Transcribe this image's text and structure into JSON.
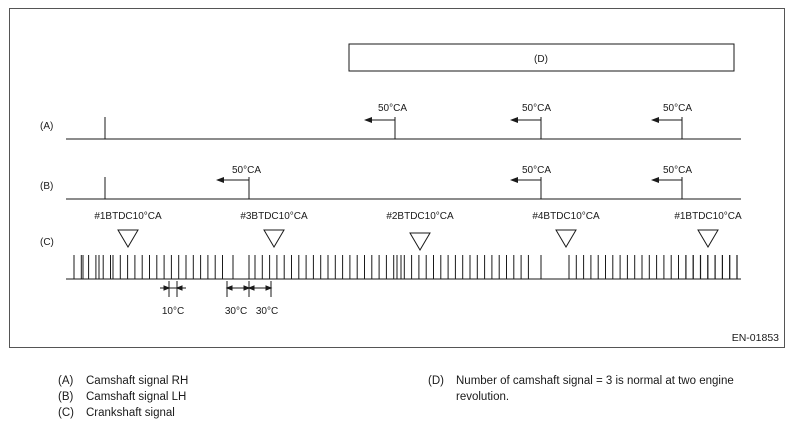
{
  "figure": {
    "code": "EN-01853",
    "box_d_label": "(D)",
    "rows": {
      "a": {
        "label": "(A)",
        "pulse_labels": [
          "50°CA",
          "50°CA",
          "50°CA"
        ]
      },
      "b": {
        "label": "(B)",
        "pulse_labels": [
          "50°CA",
          "50°CA",
          "50°CA"
        ]
      },
      "c": {
        "label": "(C)",
        "tdc_labels": [
          "#1BTDC10°CA",
          "#3BTDC10°CA",
          "#2BTDC10°CA",
          "#4BTDC10°CA",
          "#1BTDC10°CA"
        ]
      }
    },
    "dimensions": [
      "10°C",
      "30°C",
      "30°C"
    ]
  },
  "legend": {
    "left": [
      {
        "key": "(A)",
        "text": "Camshaft signal RH"
      },
      {
        "key": "(B)",
        "text": "Camshaft signal LH"
      },
      {
        "key": "(C)",
        "text": "Crankshaft signal"
      }
    ],
    "right": [
      {
        "key": "(D)",
        "text": "Number of camshaft signal = 3 is normal at two engine revolution."
      }
    ]
  }
}
